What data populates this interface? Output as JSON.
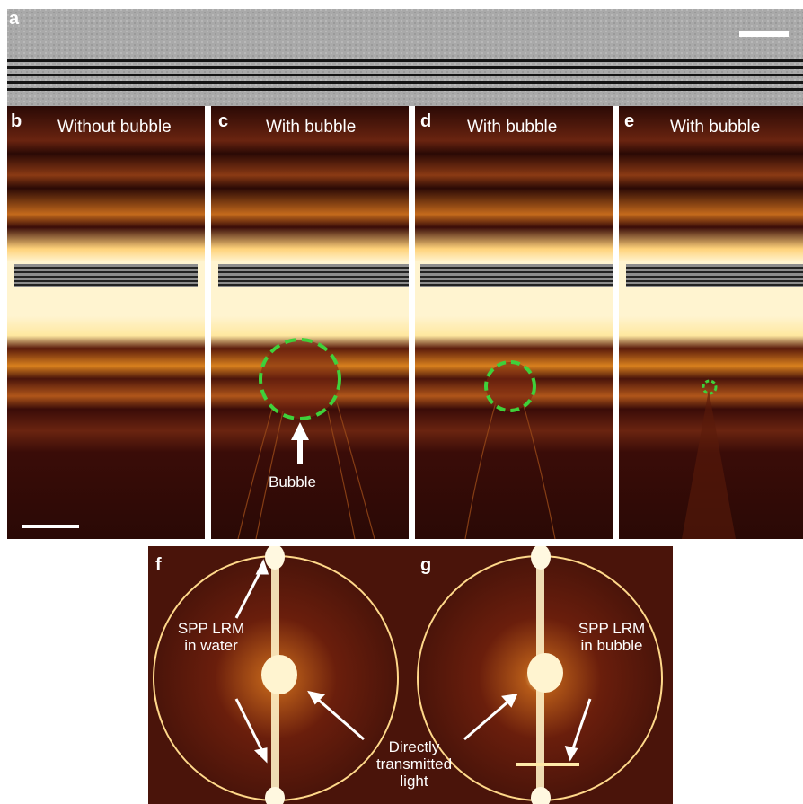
{
  "panels": {
    "a": {
      "label": "a"
    },
    "b": {
      "label": "b",
      "title": "Without bubble"
    },
    "c": {
      "label": "c",
      "title": "With bubble",
      "annotation": "Bubble"
    },
    "d": {
      "label": "d",
      "title": "With bubble"
    },
    "e": {
      "label": "e",
      "title": "With bubble"
    },
    "f": {
      "label": "f",
      "annotation_line1": "SPP LRM",
      "annotation_line2": "in water"
    },
    "g": {
      "label": "g",
      "annotation_line1": "SPP LRM",
      "annotation_line2": "in bubble"
    }
  },
  "shared_annotation": {
    "line1": "Directly",
    "line2": "transmitted",
    "line3": "light"
  },
  "colors": {
    "marker": "#3fd13a",
    "arrow": "#ffffff",
    "background_dark": "#3a0c08",
    "band": "#ffe9a8"
  }
}
